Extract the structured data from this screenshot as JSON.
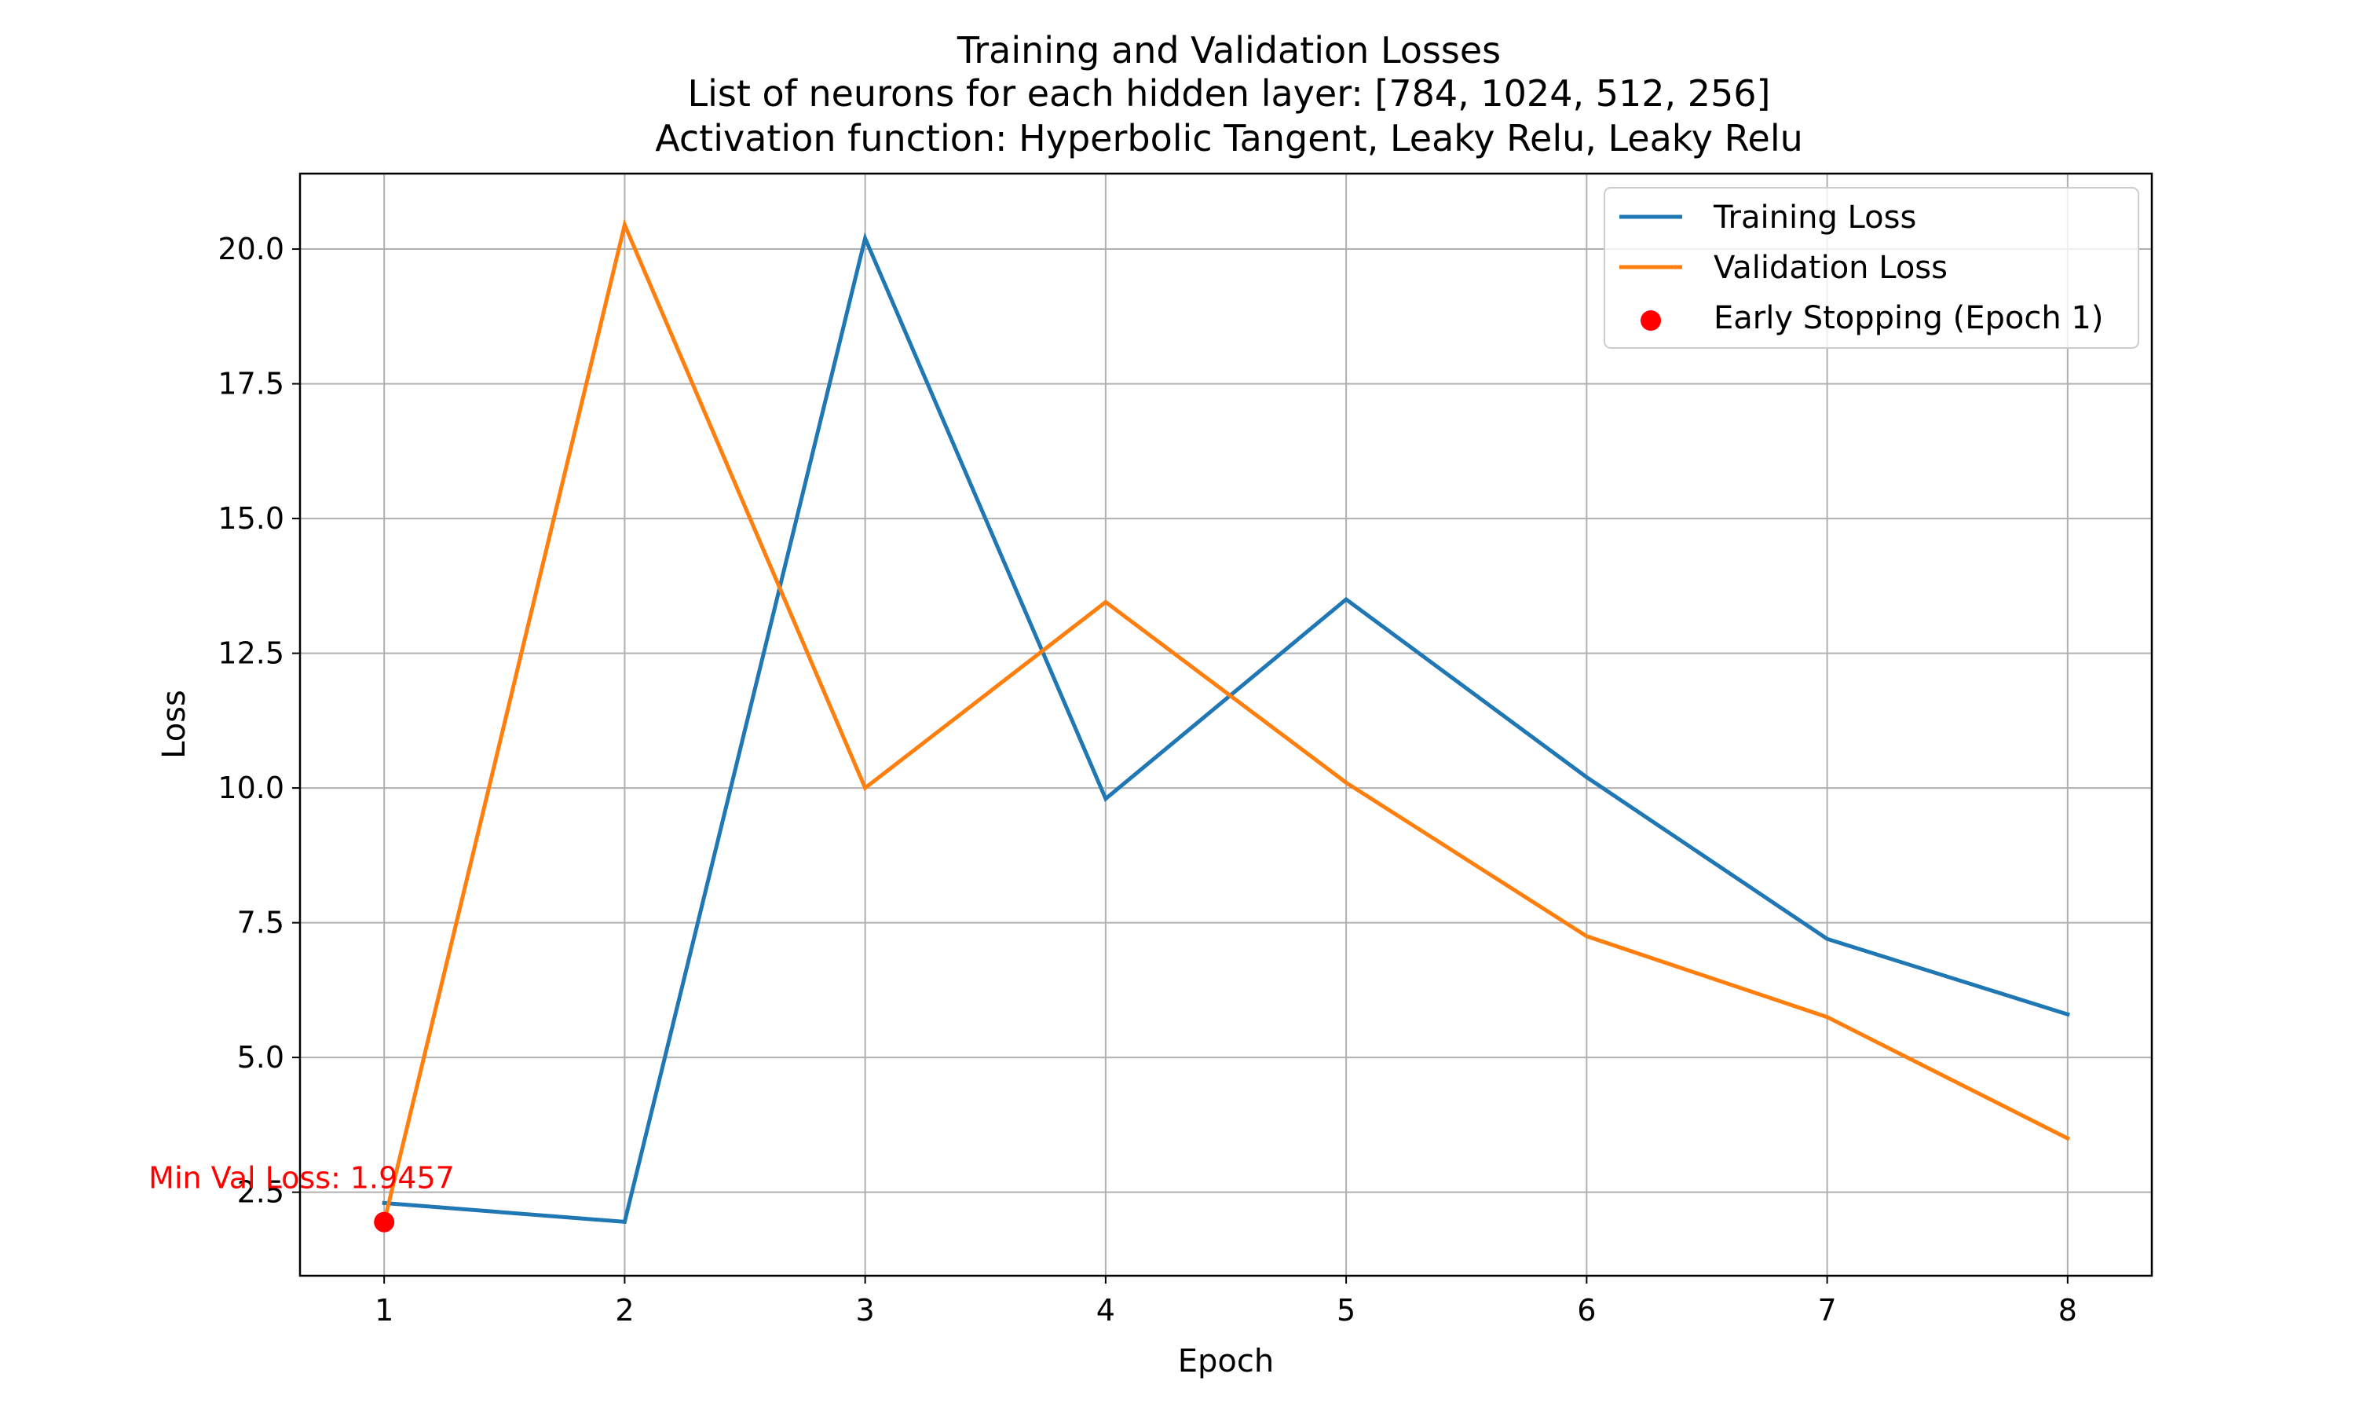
{
  "colors": {
    "training": "#1f77b4",
    "validation": "#ff7f0e",
    "early_stopping": "#ff0000",
    "grid": "#b0b0b0"
  },
  "chart_data": {
    "type": "line",
    "title_lines": [
      "Training and Validation Losses",
      "List of neurons for each hidden layer: [784, 1024, 512, 256]",
      "Activation function: Hyperbolic Tangent, Leaky Relu, Leaky Relu"
    ],
    "xlabel": "Epoch",
    "ylabel": "Loss",
    "x": [
      1,
      2,
      3,
      4,
      5,
      6,
      7,
      8
    ],
    "xlim": [
      0.65,
      8.35
    ],
    "ylim": [
      0.95,
      21.4
    ],
    "xticks": [
      1,
      2,
      3,
      4,
      5,
      6,
      7,
      8
    ],
    "xtick_labels": [
      "1",
      "2",
      "3",
      "4",
      "5",
      "6",
      "7",
      "8"
    ],
    "yticks": [
      2.5,
      5.0,
      7.5,
      10.0,
      12.5,
      15.0,
      17.5,
      20.0
    ],
    "ytick_labels": [
      "2.5",
      "5.0",
      "7.5",
      "10.0",
      "12.5",
      "15.0",
      "17.5",
      "20.0"
    ],
    "grid": true,
    "legend_position": "top-right",
    "series": [
      {
        "name": "Training Loss",
        "color_key": "training",
        "values": [
          2.3,
          1.95,
          20.2,
          9.8,
          13.5,
          10.2,
          7.2,
          5.8
        ]
      },
      {
        "name": "Validation Loss",
        "color_key": "validation",
        "values": [
          1.9457,
          20.45,
          10.0,
          13.45,
          10.1,
          7.25,
          5.75,
          3.5
        ]
      }
    ],
    "markers": [
      {
        "name": "Early Stopping (Epoch 1)",
        "x": 1,
        "y": 1.9457,
        "color_key": "early_stopping"
      }
    ],
    "annotations": [
      {
        "text": "Min Val Loss: 1.9457",
        "x": 1,
        "y": 1.9457,
        "color_key": "early_stopping"
      }
    ]
  }
}
